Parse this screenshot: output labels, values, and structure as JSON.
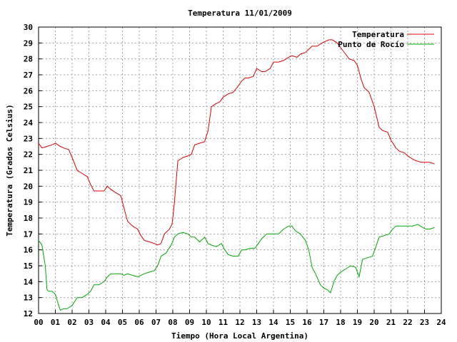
{
  "chart_data": {
    "type": "line",
    "title": "Temperatura 11/01/2009",
    "xlabel": "Tiempo (Hora Local Argentina)",
    "ylabel": "Temperatura (Grados Celsius)",
    "xlim": [
      0,
      24
    ],
    "ylim": [
      12,
      30
    ],
    "x_ticks": [
      "00",
      "01",
      "02",
      "03",
      "04",
      "05",
      "06",
      "07",
      "08",
      "09",
      "10",
      "11",
      "12",
      "13",
      "14",
      "15",
      "16",
      "17",
      "18",
      "19",
      "20",
      "21",
      "22",
      "23",
      "24"
    ],
    "y_ticks": [
      12,
      13,
      14,
      15,
      16,
      17,
      18,
      19,
      20,
      21,
      22,
      23,
      24,
      25,
      26,
      27,
      28,
      29,
      30
    ],
    "grid": true,
    "legend_position": "top-right",
    "series": [
      {
        "name": "Temperatura",
        "color": "#e00000",
        "x": [
          0.0,
          0.2,
          0.5,
          0.8,
          1.0,
          1.3,
          1.5,
          1.8,
          2.0,
          2.3,
          2.6,
          2.9,
          3.1,
          3.3,
          3.6,
          3.9,
          4.1,
          4.3,
          4.6,
          4.9,
          5.1,
          5.3,
          5.6,
          5.9,
          6.1,
          6.3,
          6.6,
          6.9,
          7.1,
          7.3,
          7.5,
          7.8,
          7.95,
          8.0,
          8.1,
          8.3,
          8.6,
          8.9,
          9.1,
          9.3,
          9.6,
          9.9,
          10.1,
          10.3,
          10.6,
          10.8,
          11.0,
          11.3,
          11.6,
          11.9,
          12.1,
          12.3,
          12.5,
          12.8,
          13.0,
          13.3,
          13.5,
          13.8,
          14.0,
          14.3,
          14.6,
          14.9,
          15.1,
          15.4,
          15.6,
          15.9,
          16.1,
          16.3,
          16.6,
          16.9,
          17.1,
          17.3,
          17.5,
          17.8,
          18.0,
          18.3,
          18.5,
          18.8,
          19.0,
          19.2,
          19.4,
          19.7,
          20.0,
          20.3,
          20.5,
          20.8,
          21.0,
          21.3,
          21.5,
          21.8,
          22.0,
          22.3,
          22.5,
          22.8,
          23.0,
          23.3,
          23.6
        ],
        "values": [
          22.7,
          22.4,
          22.5,
          22.6,
          22.7,
          22.5,
          22.4,
          22.3,
          21.8,
          21.0,
          20.8,
          20.6,
          20.1,
          19.7,
          19.7,
          19.7,
          20.0,
          19.8,
          19.6,
          19.4,
          18.6,
          17.8,
          17.5,
          17.3,
          16.9,
          16.6,
          16.5,
          16.4,
          16.3,
          16.4,
          17.0,
          17.3,
          17.6,
          18.0,
          19.0,
          21.6,
          21.8,
          21.9,
          22.0,
          22.6,
          22.7,
          22.8,
          23.5,
          25.0,
          25.2,
          25.3,
          25.6,
          25.8,
          25.9,
          26.3,
          26.6,
          26.8,
          26.8,
          26.9,
          27.4,
          27.2,
          27.2,
          27.4,
          27.8,
          27.8,
          27.9,
          28.1,
          28.2,
          28.1,
          28.3,
          28.4,
          28.6,
          28.8,
          28.8,
          29.0,
          29.1,
          29.2,
          29.2,
          29.0,
          28.7,
          28.3,
          28.0,
          27.9,
          27.6,
          26.8,
          26.2,
          25.9,
          25.0,
          23.7,
          23.5,
          23.4,
          22.9,
          22.4,
          22.2,
          22.1,
          21.9,
          21.7,
          21.6,
          21.5,
          21.5,
          21.5,
          21.4
        ]
      },
      {
        "name": "Punto de Rocío",
        "color": "#00aa00",
        "x": [
          0.0,
          0.2,
          0.4,
          0.5,
          0.6,
          0.8,
          1.0,
          1.2,
          1.3,
          1.5,
          1.7,
          2.0,
          2.3,
          2.6,
          2.9,
          3.1,
          3.3,
          3.6,
          3.9,
          4.1,
          4.3,
          4.6,
          4.9,
          5.1,
          5.3,
          5.6,
          5.9,
          6.1,
          6.3,
          6.6,
          6.9,
          7.1,
          7.3,
          7.6,
          7.9,
          8.1,
          8.3,
          8.6,
          8.9,
          9.1,
          9.3,
          9.6,
          9.9,
          10.1,
          10.3,
          10.6,
          10.9,
          11.1,
          11.3,
          11.6,
          11.9,
          12.1,
          12.3,
          12.6,
          12.9,
          13.1,
          13.3,
          13.6,
          13.9,
          14.1,
          14.3,
          14.6,
          14.9,
          15.1,
          15.3,
          15.6,
          15.9,
          16.1,
          16.3,
          16.5,
          16.8,
          17.0,
          17.2,
          17.4,
          17.6,
          17.8,
          18.0,
          18.3,
          18.6,
          18.9,
          19.1,
          19.3,
          19.6,
          19.9,
          20.1,
          20.3,
          20.6,
          20.9,
          21.1,
          21.3,
          21.6,
          21.9,
          22.1,
          22.3,
          22.6,
          22.9,
          23.1,
          23.3,
          23.6
        ],
        "values": [
          16.6,
          16.3,
          15.0,
          13.5,
          13.4,
          13.4,
          13.2,
          12.5,
          12.2,
          12.3,
          12.3,
          12.5,
          13.0,
          13.0,
          13.2,
          13.4,
          13.8,
          13.8,
          14.0,
          14.3,
          14.5,
          14.5,
          14.5,
          14.4,
          14.5,
          14.4,
          14.3,
          14.4,
          14.5,
          14.6,
          14.7,
          15.0,
          15.6,
          15.8,
          16.3,
          16.8,
          17.0,
          17.1,
          17.0,
          16.8,
          16.8,
          16.5,
          16.8,
          16.4,
          16.3,
          16.2,
          16.4,
          16.0,
          15.7,
          15.6,
          15.6,
          16.0,
          16.0,
          16.1,
          16.1,
          16.4,
          16.7,
          17.0,
          17.0,
          17.0,
          17.0,
          17.3,
          17.5,
          17.5,
          17.2,
          17.0,
          16.6,
          16.0,
          14.9,
          14.5,
          13.8,
          13.6,
          13.5,
          13.3,
          14.0,
          14.4,
          14.6,
          14.8,
          15.0,
          14.9,
          14.3,
          15.4,
          15.5,
          15.6,
          16.2,
          16.8,
          16.9,
          17.0,
          17.3,
          17.5,
          17.5,
          17.5,
          17.5,
          17.5,
          17.6,
          17.4,
          17.3,
          17.3,
          17.4
        ]
      }
    ]
  }
}
